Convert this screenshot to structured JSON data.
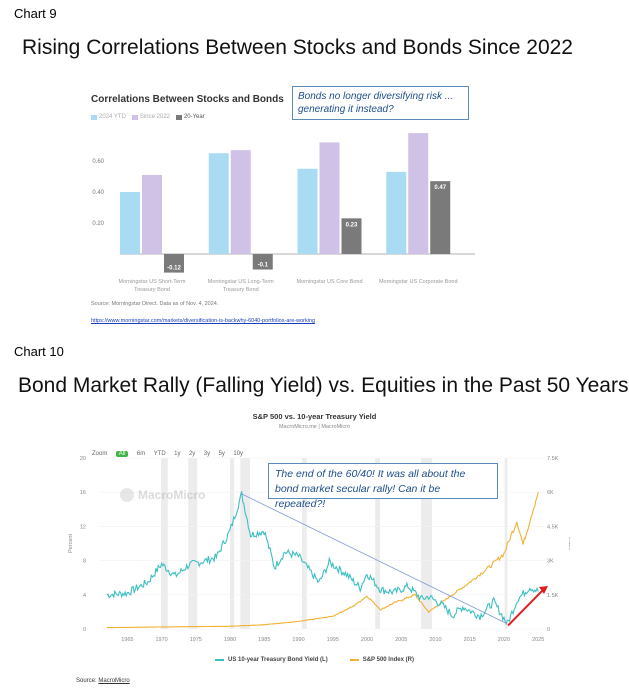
{
  "chart9": {
    "label": "Chart 9",
    "slide_title": "Rising Correlations Between Stocks and Bonds Since 2022",
    "callout": "Bonds no longer diversifying risk ... generating it instead?",
    "source": "Source: Morningstar Direct. Data as of Nov. 4, 2024.",
    "link": "https://www.morningstar.com/markets/diversification-is-backwhy-6040-portfolios-are-working"
  },
  "chart10": {
    "label": "Chart 10",
    "slide_title": "Bond Market Rally (Falling Yield) vs. Equities in the Past 50 Years",
    "callout": "The end of the 60/40! It was all about the bond market secular rally! Can it be repeated?!",
    "source_prefix": "Source: ",
    "source_link": "MacroMicro",
    "zoom_label": "Zoom",
    "zoom_options": [
      "All",
      "6m",
      "YTD",
      "1y",
      "2y",
      "3y",
      "5y",
      "10y"
    ],
    "watermark": "MacroMicro"
  },
  "chart_data": [
    {
      "type": "bar",
      "title": "Correlations Between Stocks and Bonds",
      "categories": [
        "Morningstar US Short-Term Treasury Bond",
        "Morningstar US Long-Term Treasury Bond",
        "Morningstar US Core Bond",
        "Morningstar US Corporate Bond"
      ],
      "series": [
        {
          "name": "2024 YTD",
          "color": "#a9dcf3",
          "values": [
            0.4,
            0.65,
            0.55,
            0.53
          ]
        },
        {
          "name": "Since 2022",
          "color": "#cfc2e6",
          "values": [
            0.51,
            0.67,
            0.72,
            0.78
          ]
        },
        {
          "name": "20-Year",
          "color": "#7a7a7a",
          "values": [
            -0.12,
            -0.1,
            0.23,
            0.47
          ]
        }
      ],
      "data_labels": [
        "-0.12",
        "-0.1",
        "0.23",
        "0.47"
      ],
      "yticks": [
        "0.20",
        "0.40",
        "0.60"
      ],
      "ylim": [
        -0.14,
        0.82
      ],
      "grid": false,
      "legend": "top-left"
    },
    {
      "type": "line",
      "title": "S&P 500 vs. 10-year Treasury Yield",
      "subtitle": "MacroMicro.me | MacroMicro",
      "xticks": [
        "1965",
        "1970",
        "1975",
        "1980",
        "1985",
        "1990",
        "1995",
        "2000",
        "2005",
        "2010",
        "2015",
        "2020",
        "2025"
      ],
      "yleft_label": "Percent",
      "yleft_ticks": [
        "0",
        "4",
        "8",
        "12",
        "16",
        "20"
      ],
      "yright_label": "Index",
      "yright_ticks": [
        "0",
        "1.5K",
        "3K",
        "4.5K",
        "6K",
        "7.5K"
      ],
      "xlim": [
        1961,
        2026
      ],
      "yleft_lim": [
        0,
        20
      ],
      "yright_lim": [
        0,
        7500
      ],
      "legend": "bottom-center",
      "series": [
        {
          "name": "US 10-year Treasury Bond Yield (L)",
          "axis": "left",
          "color": "#3dbfc2",
          "x": [
            1962,
            1965,
            1968,
            1970,
            1972,
            1974,
            1976,
            1978,
            1980,
            1981.7,
            1983,
            1985,
            1986.5,
            1988,
            1990,
            1993,
            1994.5,
            1997,
            1999,
            2000,
            2002,
            2004,
            2006,
            2008,
            2009,
            2011,
            2012.5,
            2014,
            2016.5,
            2018.5,
            2020.5,
            2022,
            2023.8,
            2025
          ],
          "y": [
            4.0,
            4.2,
            5.5,
            7.6,
            6.2,
            7.5,
            7.9,
            8.4,
            11.5,
            15.8,
            11.0,
            11.5,
            7.2,
            9.0,
            8.5,
            5.4,
            7.8,
            6.4,
            4.8,
            6.5,
            4.6,
            4.3,
            5.0,
            3.5,
            3.8,
            2.8,
            1.6,
            2.6,
            1.5,
            3.2,
            0.6,
            3.5,
            4.9,
            4.4
          ]
        },
        {
          "name": "S&P 500 Index (R)",
          "axis": "right",
          "color": "#f2b134",
          "x": [
            1962,
            1970,
            1980,
            1985,
            1990,
            1995,
            1998,
            2000,
            2002,
            2004,
            2007,
            2009,
            2012,
            2015,
            2018,
            2020,
            2021.9,
            2022.8,
            2024,
            2025
          ],
          "y": [
            60,
            90,
            120,
            190,
            330,
            560,
            1000,
            1450,
            850,
            1150,
            1500,
            750,
            1400,
            2050,
            2750,
            3300,
            4750,
            3700,
            5000,
            6000
          ]
        }
      ],
      "annotations": [
        "blue trend line from 1981 peak to 2020 low",
        "red arrow rising from 2020"
      ]
    }
  ]
}
